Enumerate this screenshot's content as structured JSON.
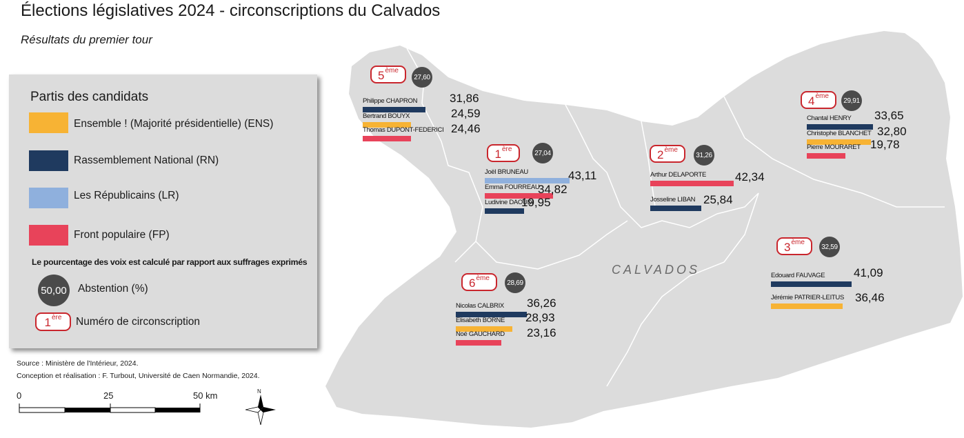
{
  "title": "Élections législatives 2024 - circonscriptions du Calvados",
  "subtitle": "Résultats du premier tour",
  "colors": {
    "ENS": "#f7b334",
    "RN": "#1f3a5f",
    "LR": "#8fb0dd",
    "FP": "#e8435a",
    "map_fill": "#dcdcdc",
    "badge": "#c9252c",
    "abstention": "#4a4a4a"
  },
  "legend": {
    "title": "Partis des candidats",
    "parties": [
      {
        "code": "ENS",
        "label": "Ensemble ! (Majorité présidentielle) (ENS)"
      },
      {
        "code": "RN",
        "label": "Rassemblement National (RN)"
      },
      {
        "code": "LR",
        "label": "Les Républicains (LR)"
      },
      {
        "code": "FP",
        "label": "Front populaire (FP)"
      }
    ],
    "note": "Le pourcentage des voix est calculé par rapport aux suffrages exprimés",
    "abstention_example": "50,00",
    "abstention_label": "Abstention (%)",
    "circ_example_num": "1",
    "circ_example_sup": "ère",
    "circ_label": "Numéro de circonscription"
  },
  "department_label": "CALVADOS",
  "circonscriptions": [
    {
      "num": "1",
      "sup": "ère",
      "abstention": "27,04",
      "candidates": [
        {
          "name": "Joël BRUNEAU",
          "party": "LR",
          "score": 43.11,
          "label": "43,11"
        },
        {
          "name": "Emma FOURREAU",
          "party": "FP",
          "score": 34.82,
          "label": "34,82"
        },
        {
          "name": "Ludivine DAOUDI",
          "party": "RN",
          "score": 19.95,
          "label": "19,95"
        }
      ]
    },
    {
      "num": "2",
      "sup": "ème",
      "abstention": "31,26",
      "candidates": [
        {
          "name": "Arthur DELAPORTE",
          "party": "FP",
          "score": 42.34,
          "label": "42,34"
        },
        {
          "name": "Josseline LIBAN",
          "party": "RN",
          "score": 25.84,
          "label": "25,84"
        }
      ]
    },
    {
      "num": "3",
      "sup": "ème",
      "abstention": "32,59",
      "candidates": [
        {
          "name": "Edouard FAUVAGE",
          "party": "RN",
          "score": 41.09,
          "label": "41,09"
        },
        {
          "name": "Jérémie PATRIER-LEITUS",
          "party": "ENS",
          "score": 36.46,
          "label": "36,46"
        }
      ]
    },
    {
      "num": "4",
      "sup": "ème",
      "abstention": "29,91",
      "candidates": [
        {
          "name": "Chantal HENRY",
          "party": "RN",
          "score": 33.65,
          "label": "33,65"
        },
        {
          "name": "Christophe BLANCHET",
          "party": "ENS",
          "score": 32.8,
          "label": "32,80"
        },
        {
          "name": "Pierre MOURARET",
          "party": "FP",
          "score": 19.78,
          "label": "19,78"
        }
      ]
    },
    {
      "num": "5",
      "sup": "ème",
      "abstention": "27,60",
      "candidates": [
        {
          "name": "Philippe CHAPRON",
          "party": "RN",
          "score": 31.86,
          "label": "31,86"
        },
        {
          "name": "Bertrand BOUYX",
          "party": "ENS",
          "score": 24.59,
          "label": "24,59"
        },
        {
          "name": "Thomas DUPONT-FEDERICI",
          "party": "FP",
          "score": 24.46,
          "label": "24,46"
        }
      ]
    },
    {
      "num": "6",
      "sup": "ème",
      "abstention": "28,69",
      "candidates": [
        {
          "name": "Nicolas CALBRIX",
          "party": "RN",
          "score": 36.26,
          "label": "36,26"
        },
        {
          "name": "Elisabeth BORNE",
          "party": "ENS",
          "score": 28.93,
          "label": "28,93"
        },
        {
          "name": "Noé GAUCHARD",
          "party": "FP",
          "score": 23.16,
          "label": "23,16"
        }
      ]
    }
  ],
  "source": "Source : Ministère de l'Intérieur, 2024.",
  "credits": "Conception et réalisation : F. Turbout, Université de Caen Normandie, 2024.",
  "scale": {
    "labels": [
      "0",
      "25",
      "50 km"
    ]
  },
  "north": "N"
}
